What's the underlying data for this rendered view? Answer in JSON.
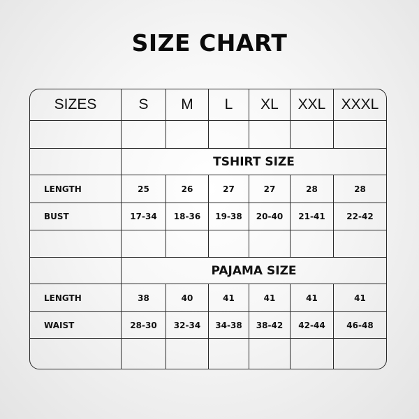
{
  "title": "SIZE CHART",
  "header": {
    "label": "SIZES",
    "sizes": [
      "S",
      "M",
      "L",
      "XL",
      "XXL",
      "XXXL"
    ]
  },
  "tshirt": {
    "section_title": "TSHIRT SIZE",
    "rows": [
      {
        "label": "LENGTH",
        "values": [
          "25",
          "26",
          "27",
          "27",
          "28",
          "28"
        ]
      },
      {
        "label": "BUST",
        "values": [
          "17-34",
          "18-36",
          "19-38",
          "20-40",
          "21-41",
          "22-42"
        ]
      }
    ]
  },
  "pajama": {
    "section_title": "PAJAMA SIZE",
    "rows": [
      {
        "label": "LENGTH",
        "values": [
          "38",
          "40",
          "41",
          "41",
          "41",
          "41"
        ]
      },
      {
        "label": "WAIST",
        "values": [
          "28-30",
          "32-34",
          "34-38",
          "38-42",
          "42-44",
          "46-48"
        ]
      }
    ]
  },
  "colors": {
    "border": "#2a2a2a",
    "text": "#111111"
  }
}
